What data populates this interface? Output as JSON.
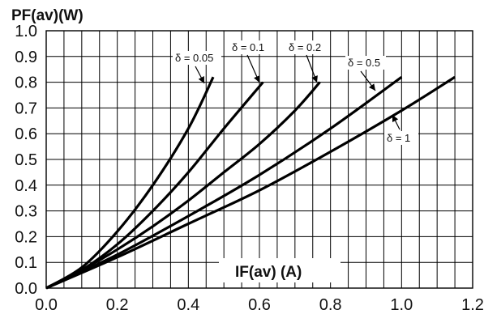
{
  "chart_data": {
    "type": "line",
    "ylabel": "PF(av)(W)",
    "xlabel": "IF(av) (A)",
    "xlim": [
      0,
      1.2
    ],
    "ylim": [
      0,
      1.0
    ],
    "x_ticks": [
      "0.0",
      "0.2",
      "0.4",
      "0.6",
      "0.8",
      "1.0",
      "1.2"
    ],
    "y_ticks": [
      "0.0",
      "0.1",
      "0.2",
      "0.3",
      "0.4",
      "0.5",
      "0.6",
      "0.7",
      "0.8",
      "0.9",
      "1.0"
    ],
    "grid": true,
    "series": [
      {
        "name": "δ = 0.05",
        "x": [
          0,
          0.1,
          0.2,
          0.3,
          0.4,
          0.47
        ],
        "y": [
          0,
          0.08,
          0.22,
          0.4,
          0.62,
          0.82
        ]
      },
      {
        "name": "δ = 0.1",
        "x": [
          0,
          0.1,
          0.2,
          0.3,
          0.4,
          0.5,
          0.61
        ],
        "y": [
          0,
          0.07,
          0.17,
          0.3,
          0.45,
          0.62,
          0.8
        ]
      },
      {
        "name": "δ = 0.2",
        "x": [
          0,
          0.1,
          0.2,
          0.3,
          0.4,
          0.5,
          0.6,
          0.7,
          0.77
        ],
        "y": [
          0,
          0.07,
          0.15,
          0.24,
          0.34,
          0.45,
          0.56,
          0.69,
          0.8
        ]
      },
      {
        "name": "δ = 0.5",
        "x": [
          0,
          0.2,
          0.4,
          0.6,
          0.8,
          1.0
        ],
        "y": [
          0,
          0.13,
          0.28,
          0.44,
          0.62,
          0.82
        ]
      },
      {
        "name": "δ = 1",
        "x": [
          0,
          0.2,
          0.4,
          0.6,
          0.8,
          1.0,
          1.15
        ],
        "y": [
          0,
          0.12,
          0.25,
          0.38,
          0.53,
          0.69,
          0.82
        ]
      }
    ],
    "annotations": [
      {
        "text": "δ = 0.05",
        "series": 0
      },
      {
        "text": "δ = 0.1",
        "series": 1
      },
      {
        "text": "δ = 0.2",
        "series": 2
      },
      {
        "text": "δ = 0.5",
        "series": 3
      },
      {
        "text": "δ = 1",
        "series": 4
      }
    ]
  }
}
